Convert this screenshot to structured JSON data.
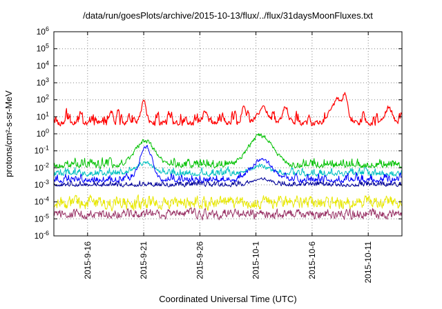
{
  "chart_data": {
    "type": "line",
    "title": "/data/run/goesPlots/archive/2015-10-13/flux/../flux/31daysMoonFluxes.txt",
    "xlabel": "Coordinated Universal Time (UTC)",
    "ylabel": "protons/cm²-s-sr-MeV",
    "y_log_range": [
      -6,
      6
    ],
    "y_tick_exponents": [
      6,
      5,
      4,
      3,
      2,
      1,
      0,
      -1,
      -2,
      -3,
      -4,
      -5,
      -6
    ],
    "x_range_days": [
      0,
      31
    ],
    "x_ticks": [
      {
        "label": "2015-9-16",
        "day": 3
      },
      {
        "label": "2015-9-21",
        "day": 8
      },
      {
        "label": "2015-9-26",
        "day": 13
      },
      {
        "label": "2015-10-1",
        "day": 18
      },
      {
        "label": "2015-10-6",
        "day": 23
      },
      {
        "label": "2015-10-11",
        "day": 28
      }
    ],
    "grid": "dotted",
    "legend": "none",
    "seed": 20151013,
    "sample_step_days": 0.045,
    "series": [
      {
        "name": "purple",
        "color": "#993366",
        "base_log10": -4.72,
        "noise_log10": 0.28,
        "events": []
      },
      {
        "name": "yellow",
        "color": "#e8e800",
        "base_log10": -4.05,
        "noise_log10": 0.38,
        "events": []
      },
      {
        "name": "navy",
        "color": "#000099",
        "base_log10": -3.0,
        "noise_log10": 0.25,
        "events": [
          {
            "center": 18.5,
            "width": 0.8,
            "peak": -2.6
          }
        ]
      },
      {
        "name": "cyan",
        "color": "#00c0c0",
        "base_log10": -2.35,
        "noise_log10": 0.33,
        "events": [
          {
            "center": 8.1,
            "width": 0.8,
            "peak": -1.7
          },
          {
            "center": 18.4,
            "width": 1.0,
            "peak": -1.9
          }
        ]
      },
      {
        "name": "blue",
        "color": "#0000ff",
        "base_log10": -2.7,
        "noise_log10": 0.36,
        "events": [
          {
            "center": 8.2,
            "width": 0.55,
            "peak": -0.75
          },
          {
            "center": 18.5,
            "width": 0.9,
            "peak": -1.5
          }
        ]
      },
      {
        "name": "green",
        "color": "#00c000",
        "base_log10": -1.85,
        "noise_log10": 0.38,
        "events": [
          {
            "center": 8.1,
            "width": 0.9,
            "peak": -0.45
          },
          {
            "center": 18.4,
            "width": 1.1,
            "peak": -0.12
          }
        ]
      },
      {
        "name": "red",
        "color": "#ff0000",
        "base_log10": 0.65,
        "noise_log10": 0.4,
        "wave_log10": 0.35,
        "events": [
          {
            "center": 5.1,
            "width": 0.15,
            "peak": 1.35
          },
          {
            "center": 8.0,
            "width": 0.22,
            "peak": 2.0
          },
          {
            "center": 13.5,
            "width": 0.2,
            "peak": 1.3
          },
          {
            "center": 16.9,
            "width": 0.2,
            "peak": 1.55
          },
          {
            "center": 18.6,
            "width": 0.5,
            "peak": 1.45
          },
          {
            "center": 20.6,
            "width": 0.25,
            "peak": 1.6
          },
          {
            "center": 25.3,
            "width": 0.6,
            "peak": 2.0
          },
          {
            "center": 25.9,
            "width": 0.25,
            "peak": 2.4
          },
          {
            "center": 29.8,
            "width": 0.3,
            "peak": 1.55
          }
        ]
      }
    ]
  }
}
